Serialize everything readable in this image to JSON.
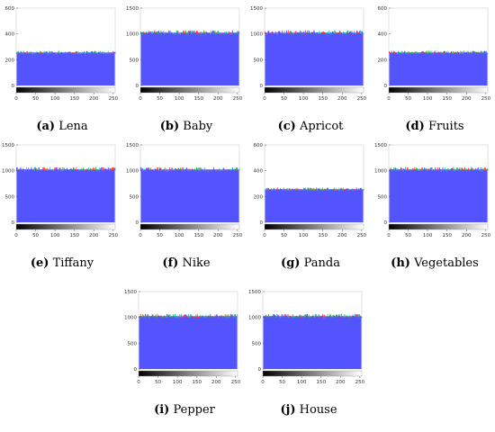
{
  "chart_data": [
    {
      "type": "bar",
      "label": "(a)",
      "name": "Lena",
      "ylim": [
        0,
        600
      ],
      "yticks": [
        0,
        200,
        400,
        600
      ],
      "xticks": [
        0,
        50,
        100,
        150,
        200,
        250
      ],
      "xlim": [
        0,
        255
      ],
      "level": 256,
      "colors": [
        "#4b4bff",
        "#ff3b3b",
        "#2eb82e",
        "#2ec4c4"
      ]
    },
    {
      "type": "bar",
      "label": "(b)",
      "name": "Baby",
      "ylim": [
        0,
        1500
      ],
      "yticks": [
        0,
        500,
        1000,
        1500
      ],
      "xticks": [
        0,
        50,
        100,
        150,
        200,
        250
      ],
      "xlim": [
        0,
        255
      ],
      "level": 1024,
      "colors": [
        "#4b4bff",
        "#ff3b3b",
        "#2eb82e",
        "#2ec4c4"
      ]
    },
    {
      "type": "bar",
      "label": "(c)",
      "name": "Apricot",
      "ylim": [
        0,
        1500
      ],
      "yticks": [
        0,
        500,
        1000,
        1500
      ],
      "xticks": [
        0,
        50,
        100,
        150,
        200,
        250
      ],
      "xlim": [
        0,
        255
      ],
      "level": 1024,
      "colors": [
        "#4b4bff",
        "#ff3b3b",
        "#2eb82e",
        "#2ec4c4"
      ]
    },
    {
      "type": "bar",
      "label": "(d)",
      "name": "Fruits",
      "ylim": [
        0,
        600
      ],
      "yticks": [
        0,
        200,
        400,
        600
      ],
      "xticks": [
        0,
        50,
        100,
        150,
        200,
        250
      ],
      "xlim": [
        0,
        255
      ],
      "level": 256,
      "colors": [
        "#4b4bff",
        "#ff3b3b",
        "#2eb82e",
        "#2ec4c4"
      ]
    },
    {
      "type": "bar",
      "label": "(e)",
      "name": "Tiffany",
      "ylim": [
        0,
        1500
      ],
      "yticks": [
        0,
        500,
        1000,
        1500
      ],
      "xticks": [
        0,
        50,
        100,
        150,
        200,
        250
      ],
      "xlim": [
        0,
        255
      ],
      "level": 1024,
      "colors": [
        "#4b4bff",
        "#ff3b3b",
        "#2eb82e",
        "#2ec4c4"
      ]
    },
    {
      "type": "bar",
      "label": "(f)",
      "name": "Nike",
      "ylim": [
        0,
        1500
      ],
      "yticks": [
        0,
        500,
        1000,
        1500
      ],
      "xticks": [
        0,
        50,
        100,
        150,
        200,
        250
      ],
      "xlim": [
        0,
        255
      ],
      "level": 1024,
      "colors": [
        "#4b4bff",
        "#ff3b3b",
        "#2eb82e",
        "#2ec4c4"
      ]
    },
    {
      "type": "bar",
      "label": "(g)",
      "name": "Panda",
      "ylim": [
        0,
        600
      ],
      "yticks": [
        0,
        200,
        400,
        600
      ],
      "xticks": [
        0,
        50,
        100,
        150,
        200,
        250
      ],
      "xlim": [
        0,
        255
      ],
      "level": 256,
      "colors": [
        "#4b4bff",
        "#ff3b3b",
        "#2eb82e",
        "#2ec4c4"
      ]
    },
    {
      "type": "bar",
      "label": "(h)",
      "name": "Vegetables",
      "ylim": [
        0,
        1500
      ],
      "yticks": [
        0,
        500,
        1000,
        1500
      ],
      "xticks": [
        0,
        50,
        100,
        150,
        200,
        250
      ],
      "xlim": [
        0,
        255
      ],
      "level": 1024,
      "colors": [
        "#4b4bff",
        "#ff3b3b",
        "#2eb82e",
        "#2ec4c4"
      ]
    },
    {
      "type": "bar",
      "label": "(i)",
      "name": "Pepper",
      "ylim": [
        0,
        1500
      ],
      "yticks": [
        0,
        500,
        1000,
        1500
      ],
      "xticks": [
        0,
        50,
        100,
        150,
        200,
        250
      ],
      "xlim": [
        0,
        255
      ],
      "level": 1024,
      "colors": [
        "#4b4bff",
        "#ff3b3b",
        "#2eb82e",
        "#2ec4c4"
      ]
    },
    {
      "type": "bar",
      "label": "(j)",
      "name": "House",
      "ylim": [
        0,
        1500
      ],
      "yticks": [
        0,
        500,
        1000,
        1500
      ],
      "xticks": [
        0,
        50,
        100,
        150,
        200,
        250
      ],
      "xlim": [
        0,
        255
      ],
      "level": 1024,
      "colors": [
        "#4b4bff",
        "#ff3b3b",
        "#2eb82e",
        "#2ec4c4"
      ]
    }
  ]
}
